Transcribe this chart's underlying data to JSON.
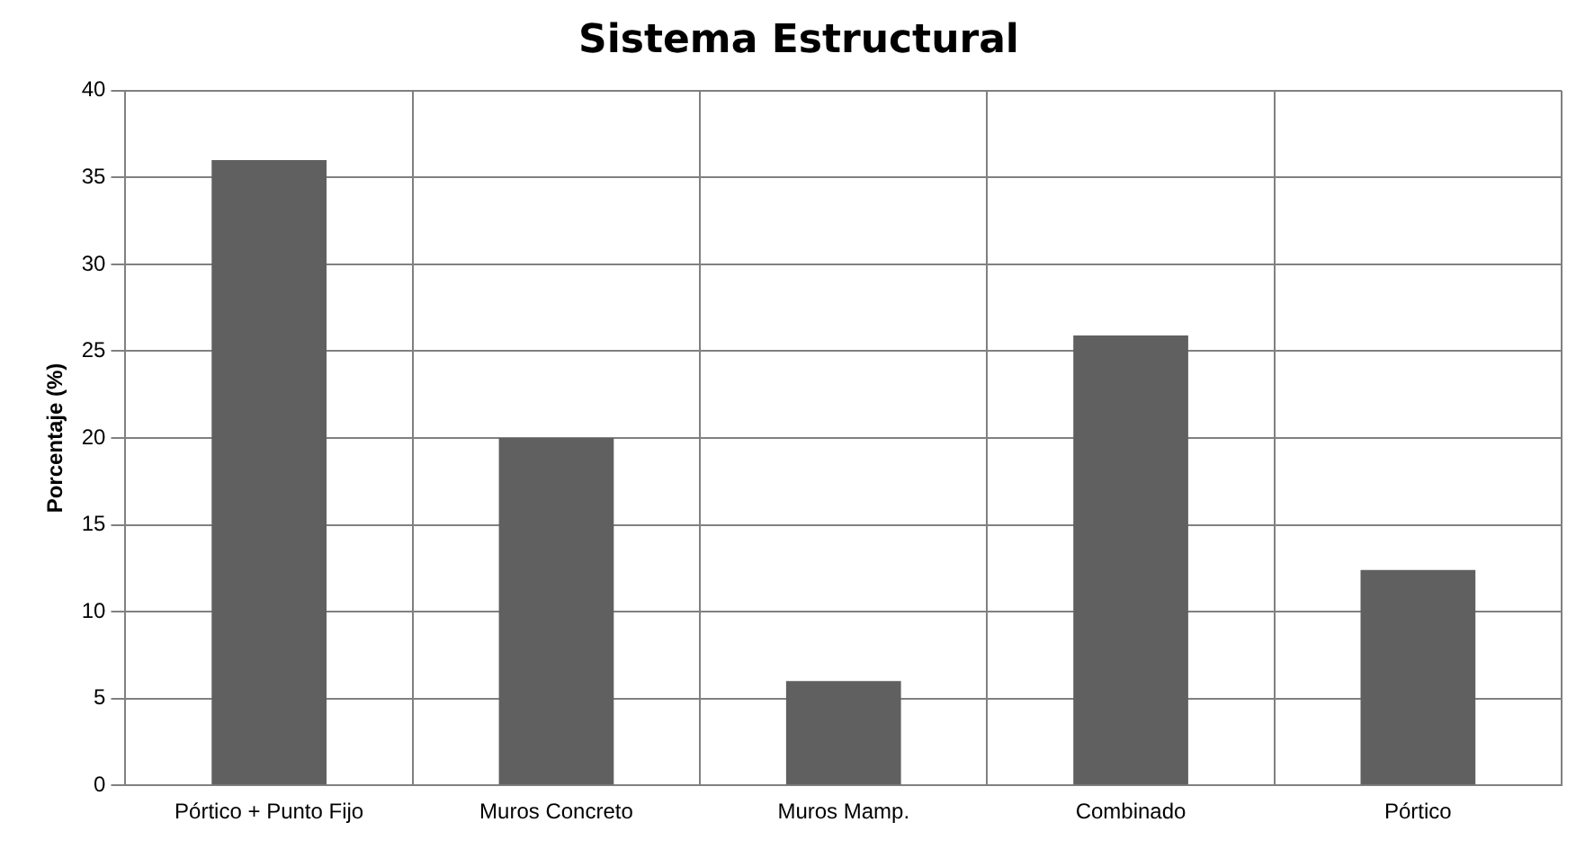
{
  "chart_data": {
    "type": "bar",
    "title": "Sistema Estructural",
    "ylabel": "Porcentaje (%)",
    "categories": [
      "Pórtico + Punto Fijo",
      "Muros Concreto",
      "Muros Mamp.",
      "Combinado",
      "Pórtico"
    ],
    "values": [
      36,
      20,
      6,
      25.9,
      12.4
    ],
    "color": "#606060",
    "ylim": [
      0,
      40
    ],
    "yticks": [
      0,
      5,
      10,
      15,
      20,
      25,
      30,
      35,
      40
    ],
    "grid": true
  }
}
